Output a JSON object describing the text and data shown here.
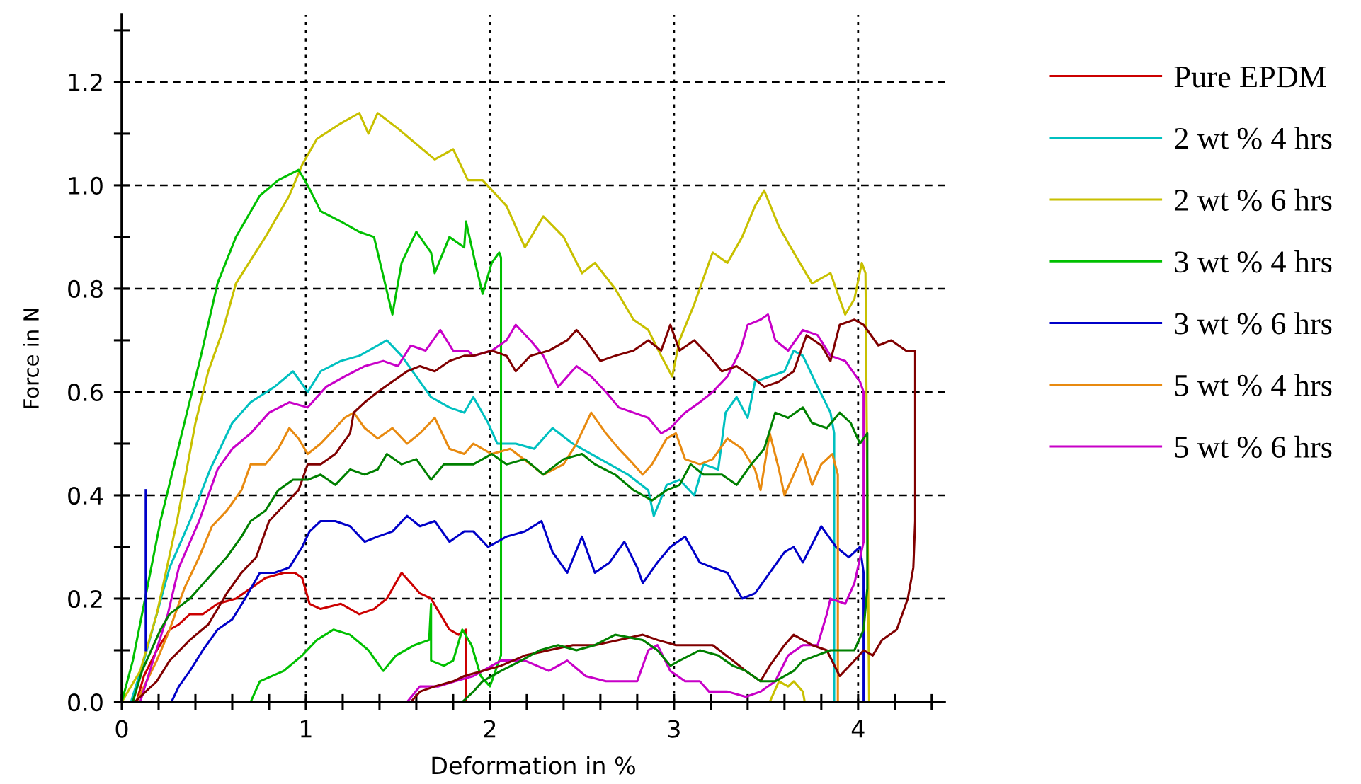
{
  "chart_data": {
    "type": "line",
    "xlabel": "Deformation in %",
    "ylabel": "Force in N",
    "xlim": [
      0,
      4.47
    ],
    "ylim": [
      0,
      1.33
    ],
    "xticks": [
      0,
      {
        "value": 0.2,
        "label": null
      },
      {
        "value": 0.4,
        "label": null
      },
      {
        "value": 0.6,
        "label": null
      },
      {
        "value": 0.8,
        "label": null
      },
      1,
      {
        "value": 1.2,
        "label": null
      },
      {
        "value": 1.4,
        "label": null
      },
      {
        "value": 1.6,
        "label": null
      },
      {
        "value": 1.8,
        "label": null
      },
      2,
      {
        "value": 2.2,
        "label": null
      },
      {
        "value": 2.4,
        "label": null
      },
      {
        "value": 2.6,
        "label": null
      },
      {
        "value": 2.8,
        "label": null
      },
      3,
      {
        "value": 3.2,
        "label": null
      },
      {
        "value": 3.4,
        "label": null
      },
      {
        "value": 3.6,
        "label": null
      },
      {
        "value": 3.8,
        "label": null
      },
      4,
      {
        "value": 4.2,
        "label": null
      },
      {
        "value": 4.4,
        "label": null
      }
    ],
    "yticks": [
      {
        "value": 0,
        "label": "0.0"
      },
      {
        "value": 0.1,
        "label": null
      },
      {
        "value": 0.2,
        "label": "0.2"
      },
      {
        "value": 0.3,
        "label": null
      },
      {
        "value": 0.4,
        "label": "0.4"
      },
      {
        "value": 0.5,
        "label": null
      },
      {
        "value": 0.6,
        "label": "0.6"
      },
      {
        "value": 0.7,
        "label": null
      },
      {
        "value": 0.8,
        "label": "0.8"
      },
      {
        "value": 0.9,
        "label": null
      },
      {
        "value": 1.0,
        "label": "1.0"
      },
      {
        "value": 1.1,
        "label": null
      },
      {
        "value": 1.2,
        "label": "1.2"
      },
      {
        "value": 1.3,
        "label": null
      }
    ],
    "grid": true,
    "legend": "right",
    "series": [
      {
        "name": "Pure EPDM",
        "color": "#cc0000",
        "x": [
          0.08,
          0.12,
          0.19,
          0.26,
          0.31,
          0.37,
          0.44,
          0.52,
          0.62,
          0.7,
          0.78,
          0.88,
          0.94,
          0.98,
          1.02,
          1.08,
          1.19,
          1.29,
          1.37,
          1.44,
          1.52,
          1.57,
          1.62,
          1.68,
          1.73,
          1.78,
          1.83,
          1.87,
          1.87
        ],
        "values": [
          0,
          0.05,
          0.1,
          0.14,
          0.15,
          0.17,
          0.17,
          0.19,
          0.2,
          0.22,
          0.24,
          0.25,
          0.25,
          0.24,
          0.19,
          0.18,
          0.19,
          0.17,
          0.18,
          0.2,
          0.25,
          0.23,
          0.21,
          0.2,
          0.17,
          0.14,
          0.13,
          0.14,
          0
        ]
      },
      {
        "name": "2 wt % 4 hrs",
        "color": "#00c0c0",
        "x": [
          0.05,
          0.12,
          0.19,
          0.26,
          0.37,
          0.48,
          0.6,
          0.7,
          0.83,
          0.93,
          1.01,
          1.08,
          1.19,
          1.29,
          1.39,
          1.44,
          1.52,
          1.6,
          1.68,
          1.78,
          1.86,
          1.91,
          1.99,
          2.04,
          2.14,
          2.24,
          2.34,
          2.45,
          2.55,
          2.65,
          2.75,
          2.86,
          2.89,
          2.96,
          3.03,
          3.11,
          3.16,
          3.24,
          3.28,
          3.34,
          3.4,
          3.44,
          3.52,
          3.6,
          3.65,
          3.7,
          3.78,
          3.85,
          3.87,
          3.87
        ],
        "values": [
          0,
          0.08,
          0.17,
          0.26,
          0.35,
          0.45,
          0.54,
          0.58,
          0.61,
          0.64,
          0.6,
          0.64,
          0.66,
          0.67,
          0.69,
          0.7,
          0.67,
          0.63,
          0.59,
          0.57,
          0.56,
          0.59,
          0.54,
          0.5,
          0.5,
          0.49,
          0.53,
          0.5,
          0.48,
          0.46,
          0.44,
          0.41,
          0.36,
          0.42,
          0.43,
          0.4,
          0.46,
          0.45,
          0.56,
          0.59,
          0.55,
          0.62,
          0.63,
          0.64,
          0.68,
          0.67,
          0.61,
          0.56,
          0.52,
          0
        ]
      },
      {
        "name": "2 wt % 6 hrs",
        "color": "#c8c000",
        "x": [
          0,
          0.1,
          0.19,
          0.3,
          0.4,
          0.47,
          0.55,
          0.62,
          0.78,
          0.91,
          0.98,
          1.06,
          1.19,
          1.29,
          1.34,
          1.39,
          1.5,
          1.6,
          1.7,
          1.8,
          1.88,
          1.96,
          2.09,
          2.19,
          2.29,
          2.4,
          2.5,
          2.57,
          2.68,
          2.78,
          2.86,
          2.93,
          2.99,
          3.03,
          3.11,
          3.21,
          3.29,
          3.37,
          3.44,
          3.49,
          3.57,
          3.65,
          3.75,
          3.85,
          3.93,
          3.98,
          4.02,
          4.04,
          4.06,
          3.71,
          3.7,
          3.65,
          3.62,
          3.57,
          3.52
        ],
        "values": [
          0,
          0.06,
          0.17,
          0.35,
          0.54,
          0.64,
          0.72,
          0.81,
          0.9,
          0.98,
          1.04,
          1.09,
          1.12,
          1.14,
          1.1,
          1.14,
          1.11,
          1.08,
          1.05,
          1.07,
          1.01,
          1.01,
          0.96,
          0.88,
          0.94,
          0.9,
          0.83,
          0.85,
          0.8,
          0.74,
          0.72,
          0.67,
          0.63,
          0.7,
          0.77,
          0.87,
          0.85,
          0.9,
          0.96,
          0.99,
          0.92,
          0.87,
          0.81,
          0.83,
          0.75,
          0.78,
          0.85,
          0.83,
          0,
          0,
          0.02,
          0.04,
          0.03,
          0.04,
          0
        ]
      },
      {
        "name": "3 wt % 4 hrs",
        "color": "#00c000",
        "x": [
          0,
          0.06,
          0.11,
          0.21,
          0.34,
          0.43,
          0.52,
          0.62,
          0.75,
          0.85,
          0.96,
          1.01,
          1.08,
          1.19,
          1.29,
          1.37,
          1.43,
          1.47,
          1.52,
          1.6,
          1.68,
          1.7,
          1.78,
          1.86,
          1.87,
          1.92,
          1.96,
          2.01,
          2.05,
          2.06,
          2.06,
          2.0,
          1.95,
          1.9,
          1.85,
          1.8,
          1.75,
          1.68,
          1.68,
          1.67,
          1.59,
          1.49,
          1.42,
          1.34,
          1.24,
          1.15,
          1.06,
          0.98,
          0.88,
          0.75,
          0.7
        ],
        "values": [
          0,
          0.08,
          0.17,
          0.35,
          0.54,
          0.67,
          0.81,
          0.9,
          0.98,
          1.01,
          1.03,
          1.0,
          0.95,
          0.93,
          0.91,
          0.9,
          0.81,
          0.75,
          0.85,
          0.91,
          0.87,
          0.83,
          0.9,
          0.88,
          0.93,
          0.85,
          0.79,
          0.85,
          0.87,
          0.86,
          0.09,
          0.03,
          0.05,
          0.11,
          0.14,
          0.08,
          0.07,
          0.08,
          0.19,
          0.12,
          0.11,
          0.09,
          0.06,
          0.1,
          0.13,
          0.14,
          0.12,
          0.09,
          0.06,
          0.04,
          0
        ]
      },
      {
        "name": "3 wt % 6 hrs",
        "color": "#0000c8",
        "x": [
          0.27,
          0.31,
          0.37,
          0.44,
          0.52,
          0.6,
          0.67,
          0.75,
          0.83,
          0.91,
          0.98,
          1.02,
          1.08,
          1.16,
          1.24,
          1.32,
          1.39,
          1.47,
          1.55,
          1.62,
          1.7,
          1.78,
          1.86,
          1.91,
          1.99,
          2.09,
          2.19,
          2.28,
          2.34,
          2.42,
          2.5,
          2.57,
          2.65,
          2.73,
          2.8,
          2.83,
          2.91,
          2.98,
          3.06,
          3.14,
          3.21,
          3.29,
          3.37,
          3.44,
          3.52,
          3.6,
          3.65,
          3.7,
          3.8,
          3.88,
          3.95,
          4.01,
          4.03,
          4.03
        ],
        "values": [
          0,
          0.03,
          0.06,
          0.1,
          0.14,
          0.16,
          0.2,
          0.25,
          0.25,
          0.26,
          0.3,
          0.33,
          0.35,
          0.35,
          0.34,
          0.31,
          0.32,
          0.33,
          0.36,
          0.34,
          0.35,
          0.31,
          0.33,
          0.33,
          0.3,
          0.32,
          0.33,
          0.35,
          0.29,
          0.25,
          0.32,
          0.25,
          0.27,
          0.31,
          0.26,
          0.23,
          0.27,
          0.3,
          0.32,
          0.27,
          0.26,
          0.25,
          0.2,
          0.21,
          0.25,
          0.29,
          0.3,
          0.27,
          0.34,
          0.3,
          0.28,
          0.3,
          0.25,
          0
        ]
      },
      {
        "name": "5 wt % 4 hrs",
        "color": "#e88a10",
        "x": [
          0.08,
          0.19,
          0.26,
          0.34,
          0.42,
          0.49,
          0.57,
          0.65,
          0.7,
          0.78,
          0.85,
          0.91,
          0.96,
          1.01,
          1.08,
          1.16,
          1.21,
          1.26,
          1.32,
          1.39,
          1.47,
          1.55,
          1.62,
          1.7,
          1.78,
          1.86,
          1.91,
          2.01,
          2.11,
          2.22,
          2.29,
          2.4,
          2.47,
          2.55,
          2.63,
          2.7,
          2.78,
          2.83,
          2.88,
          2.96,
          3.01,
          3.06,
          3.14,
          3.21,
          3.29,
          3.37,
          3.44,
          3.47,
          3.52,
          3.57,
          3.6,
          3.65,
          3.7,
          3.75,
          3.8,
          3.86,
          3.89,
          3.89
        ],
        "values": [
          0,
          0.08,
          0.14,
          0.22,
          0.28,
          0.34,
          0.37,
          0.41,
          0.46,
          0.46,
          0.49,
          0.53,
          0.51,
          0.48,
          0.5,
          0.53,
          0.55,
          0.56,
          0.53,
          0.51,
          0.53,
          0.5,
          0.52,
          0.55,
          0.49,
          0.48,
          0.5,
          0.48,
          0.49,
          0.46,
          0.44,
          0.46,
          0.5,
          0.56,
          0.52,
          0.49,
          0.46,
          0.44,
          0.46,
          0.51,
          0.52,
          0.47,
          0.46,
          0.47,
          0.51,
          0.49,
          0.45,
          0.41,
          0.52,
          0.45,
          0.4,
          0.44,
          0.48,
          0.42,
          0.46,
          0.48,
          0.44,
          0
        ]
      },
      {
        "name": "5 wt % 6 hrs",
        "color": "#c800c8",
        "x": [
          0.1,
          0.17,
          0.25,
          0.31,
          0.42,
          0.52,
          0.6,
          0.7,
          0.8,
          0.91,
          1.01,
          1.11,
          1.21,
          1.32,
          1.42,
          1.5,
          1.57,
          1.65,
          1.73,
          1.8,
          1.88,
          1.91,
          2.01,
          2.09,
          2.14,
          2.22,
          2.29,
          2.37,
          2.47,
          2.55,
          2.63,
          2.7,
          2.78,
          2.86,
          2.93,
          2.98,
          3.06,
          3.14,
          3.21,
          3.29,
          3.36,
          3.4,
          3.47,
          3.51,
          3.55,
          3.62,
          3.7,
          3.78,
          3.85,
          3.93,
          4.01,
          4.03,
          4.03,
          3.98,
          3.93,
          3.85,
          3.83,
          3.78,
          3.7,
          3.62,
          3.55,
          3.47,
          3.39,
          3.29,
          3.19,
          3.14,
          3.06,
          2.98,
          2.91,
          2.86,
          2.8,
          2.73,
          2.63,
          2.52,
          2.42,
          2.32,
          2.19,
          2.06,
          2.01,
          1.91,
          1.81,
          1.72,
          1.62,
          1.55,
          1.31
        ],
        "values": [
          0,
          0.08,
          0.17,
          0.26,
          0.35,
          0.45,
          0.49,
          0.52,
          0.56,
          0.58,
          0.57,
          0.61,
          0.63,
          0.65,
          0.66,
          0.65,
          0.69,
          0.68,
          0.72,
          0.68,
          0.68,
          0.67,
          0.68,
          0.7,
          0.73,
          0.7,
          0.67,
          0.61,
          0.65,
          0.63,
          0.6,
          0.57,
          0.56,
          0.55,
          0.52,
          0.53,
          0.56,
          0.58,
          0.6,
          0.63,
          0.68,
          0.73,
          0.74,
          0.75,
          0.7,
          0.68,
          0.72,
          0.71,
          0.67,
          0.66,
          0.62,
          0.6,
          0.31,
          0.23,
          0.19,
          0.2,
          0.17,
          0.11,
          0.11,
          0.09,
          0.04,
          0.02,
          0.01,
          0.02,
          0.02,
          0.04,
          0.04,
          0.06,
          0.11,
          0.1,
          0.04,
          0.04,
          0.04,
          0.05,
          0.08,
          0.06,
          0.08,
          0.08,
          0.07,
          0.05,
          0.04,
          0.03,
          0.03,
          0,
          0
        ]
      },
      {
        "color": "#800000",
        "x": [
          0.07,
          0.19,
          0.26,
          0.37,
          0.47,
          0.57,
          0.65,
          0.73,
          0.8,
          0.88,
          0.96,
          1.01,
          1.08,
          1.16,
          1.24,
          1.26,
          1.32,
          1.39,
          1.47,
          1.55,
          1.62,
          1.7,
          1.78,
          1.86,
          1.91,
          2.01,
          2.09,
          2.14,
          2.22,
          2.32,
          2.42,
          2.47,
          2.52,
          2.6,
          2.68,
          2.78,
          2.86,
          2.93,
          2.98,
          3.03,
          3.11,
          3.19,
          3.26,
          3.34,
          3.42,
          3.49,
          3.57,
          3.65,
          3.72,
          3.8,
          3.85,
          3.9,
          3.98,
          4.03,
          4.11,
          4.18,
          4.26,
          4.31,
          4.31,
          4.3,
          4.27,
          4.21,
          4.13,
          4.08,
          4.03,
          3.98,
          3.9,
          3.83,
          3.75,
          3.65,
          3.6,
          3.52,
          3.47,
          3.39,
          3.32,
          3.21,
          3.11,
          3.01,
          2.91,
          2.83,
          2.7,
          2.57,
          2.45,
          2.32,
          2.19,
          2.06,
          1.96,
          1.86,
          1.8,
          1.7,
          1.62,
          1.57
        ],
        "values": [
          0,
          0.04,
          0.08,
          0.12,
          0.15,
          0.21,
          0.25,
          0.28,
          0.35,
          0.38,
          0.41,
          0.46,
          0.46,
          0.48,
          0.52,
          0.56,
          0.58,
          0.6,
          0.62,
          0.64,
          0.65,
          0.64,
          0.66,
          0.67,
          0.67,
          0.68,
          0.67,
          0.64,
          0.67,
          0.68,
          0.7,
          0.72,
          0.7,
          0.66,
          0.67,
          0.68,
          0.7,
          0.68,
          0.73,
          0.68,
          0.7,
          0.67,
          0.64,
          0.65,
          0.63,
          0.61,
          0.62,
          0.64,
          0.71,
          0.69,
          0.66,
          0.73,
          0.74,
          0.73,
          0.69,
          0.7,
          0.68,
          0.68,
          0.35,
          0.26,
          0.2,
          0.14,
          0.12,
          0.09,
          0.1,
          0.08,
          0.05,
          0.1,
          0.11,
          0.13,
          0.11,
          0.07,
          0.04,
          0.06,
          0.08,
          0.11,
          0.11,
          0.11,
          0.12,
          0.13,
          0.12,
          0.11,
          0.11,
          0.1,
          0.09,
          0.07,
          0.06,
          0.05,
          0.04,
          0.03,
          0.02,
          0
        ]
      },
      {
        "color": "#008000",
        "x": [
          0.06,
          0.11,
          0.21,
          0.26,
          0.37,
          0.47,
          0.57,
          0.65,
          0.7,
          0.78,
          0.85,
          0.93,
          1.01,
          1.08,
          1.16,
          1.24,
          1.32,
          1.39,
          1.44,
          1.52,
          1.6,
          1.68,
          1.75,
          1.83,
          1.91,
          2.01,
          2.09,
          2.19,
          2.29,
          2.4,
          2.5,
          2.57,
          2.68,
          2.78,
          2.88,
          2.96,
          3.03,
          3.09,
          3.16,
          3.26,
          3.34,
          3.42,
          3.49,
          3.55,
          3.62,
          3.7,
          3.75,
          3.83,
          3.9,
          3.96,
          4.01,
          4.05,
          4.05,
          4.03,
          3.98,
          3.85,
          3.7,
          3.65,
          3.55,
          3.47,
          3.39,
          3.32,
          3.24,
          3.14,
          3.03,
          2.98,
          2.91,
          2.83,
          2.68,
          2.57,
          2.47,
          2.37,
          2.27,
          2.17,
          2.06,
          1.96,
          1.91,
          1.85
        ],
        "values": [
          0,
          0.06,
          0.14,
          0.17,
          0.2,
          0.24,
          0.28,
          0.32,
          0.35,
          0.37,
          0.41,
          0.43,
          0.43,
          0.44,
          0.42,
          0.45,
          0.44,
          0.45,
          0.48,
          0.46,
          0.47,
          0.43,
          0.46,
          0.46,
          0.46,
          0.48,
          0.46,
          0.47,
          0.44,
          0.47,
          0.48,
          0.46,
          0.44,
          0.41,
          0.39,
          0.41,
          0.42,
          0.46,
          0.44,
          0.44,
          0.42,
          0.46,
          0.49,
          0.56,
          0.55,
          0.57,
          0.54,
          0.53,
          0.56,
          0.54,
          0.5,
          0.52,
          0.22,
          0.14,
          0.1,
          0.1,
          0.08,
          0.06,
          0.04,
          0.04,
          0.06,
          0.07,
          0.09,
          0.1,
          0.08,
          0.07,
          0.1,
          0.12,
          0.13,
          0.11,
          0.1,
          0.11,
          0.1,
          0.08,
          0.06,
          0.04,
          0.02,
          0
        ]
      },
      {
        "color": "#0000c8",
        "x": [
          0.13,
          0.13
        ],
        "values": [
          0.1,
          0.41
        ]
      }
    ]
  }
}
